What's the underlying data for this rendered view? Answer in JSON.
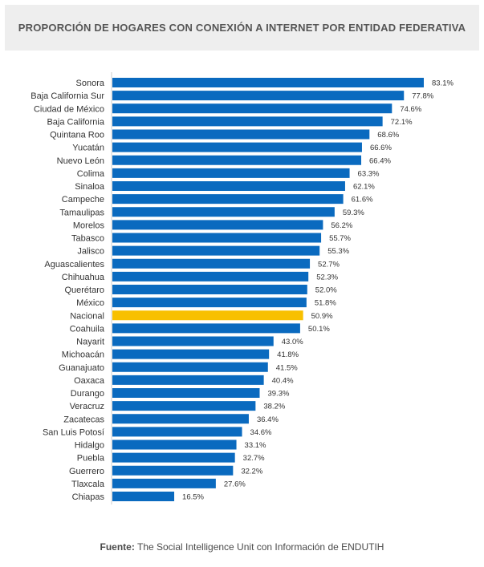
{
  "title": "PROPORCIÓN DE HOGARES CON CONEXIÓN A INTERNET POR ENTIDAD FEDERATIVA",
  "source": {
    "label": "Fuente:",
    "text": "The Social Intelligence Unit con Información de ENDUTIH"
  },
  "colors": {
    "bar": "#0a6abf",
    "highlight": "#f8c000"
  },
  "chart_data": {
    "type": "bar",
    "orientation": "horizontal",
    "value_suffix": "%",
    "xlim": [
      0,
      90
    ],
    "grid": false,
    "highlight_category": "Nacional",
    "categories": [
      "Sonora",
      "Baja California Sur",
      "Ciudad de México",
      "Baja California",
      "Quintana Roo",
      "Yucatán",
      "Nuevo León",
      "Colima",
      "Sinaloa",
      "Campeche",
      "Tamaulipas",
      "Morelos",
      "Tabasco",
      "Jalisco",
      "Aguascalientes",
      "Chihuahua",
      "Querétaro",
      "México",
      "Nacional",
      "Coahuila",
      "Nayarit",
      "Michoacán",
      "Guanajuato",
      "Oaxaca",
      "Durango",
      "Veracruz",
      "Zacatecas",
      "San Luis Potosí",
      "Hidalgo",
      "Puebla",
      "Guerrero",
      "Tlaxcala",
      "Chiapas"
    ],
    "values": [
      83.1,
      77.8,
      74.6,
      72.1,
      68.6,
      66.6,
      66.4,
      63.3,
      62.1,
      61.6,
      59.3,
      56.2,
      55.7,
      55.3,
      52.7,
      52.3,
      52.0,
      51.8,
      50.9,
      50.1,
      43.0,
      41.8,
      41.5,
      40.4,
      39.3,
      38.2,
      36.4,
      34.6,
      33.1,
      32.7,
      32.2,
      27.6,
      16.5
    ]
  }
}
